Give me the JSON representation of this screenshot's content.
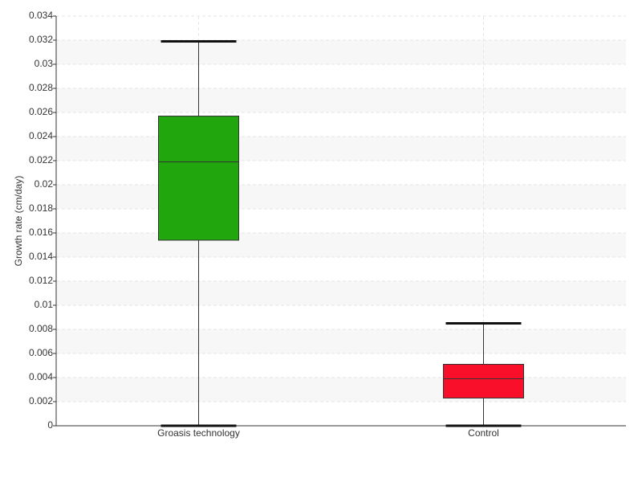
{
  "chart_data": {
    "type": "box",
    "y_label": "Growth rate (cm/day)",
    "categories": [
      "Groasis technology",
      "Control"
    ],
    "boxes": [
      {
        "min": 0,
        "q1": 0.0154,
        "median": 0.0219,
        "q3": 0.0257,
        "max": 0.0319,
        "color": "#21a60e"
      },
      {
        "min": 0,
        "q1": 0.0023,
        "median": 0.0039,
        "q3": 0.0051,
        "max": 0.0085,
        "color": "#fa0f2b"
      }
    ],
    "ylim": [
      0,
      0.034
    ],
    "yticks": [
      0,
      0.002,
      0.004,
      0.006,
      0.008,
      0.01,
      0.012,
      0.014,
      0.016,
      0.018,
      0.02,
      0.022,
      0.024,
      0.026,
      0.028,
      0.03,
      0.032,
      0.034
    ],
    "grid": true
  }
}
